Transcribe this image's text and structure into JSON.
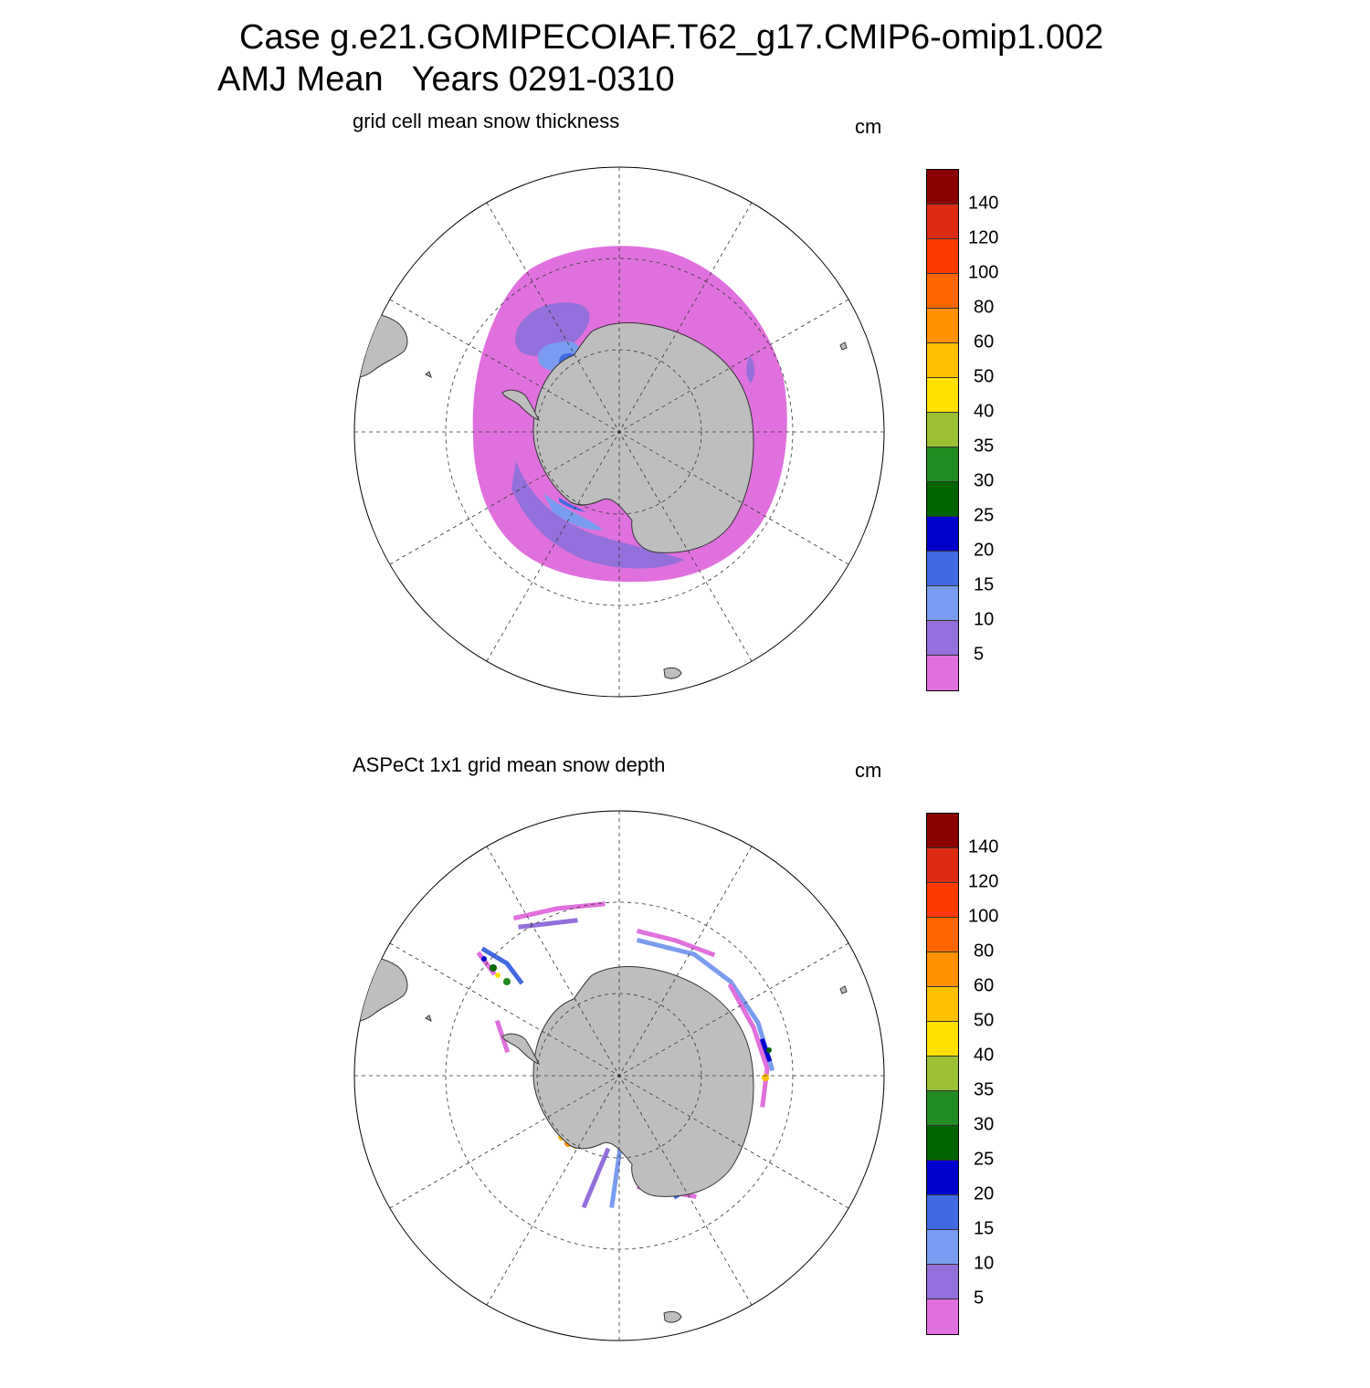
{
  "header": {
    "title_line1": "Case g.e21.GOMIPECOIAF.T62_g17.CMIP6-omip1.002",
    "title_line2": "AMJ Mean   Years 0291-0310"
  },
  "panels": [
    {
      "title": "grid cell mean snow thickness",
      "units": "cm"
    },
    {
      "title": "ASPeCt 1x1 grid mean snow depth",
      "units": "cm"
    }
  ],
  "colorbar": {
    "labels": [
      "140",
      "120",
      "100",
      "80",
      "60",
      "50",
      "40",
      "35",
      "30",
      "25",
      "20",
      "15",
      "10",
      "5"
    ],
    "colors": [
      "#8b0000",
      "#dd2a12",
      "#ff3b00",
      "#ff6600",
      "#ff9000",
      "#ffc000",
      "#ffe000",
      "#9bc034",
      "#228b22",
      "#006400",
      "#0000cd",
      "#4169e1",
      "#7a9cf0",
      "#9370db",
      "#e070dd"
    ]
  }
}
